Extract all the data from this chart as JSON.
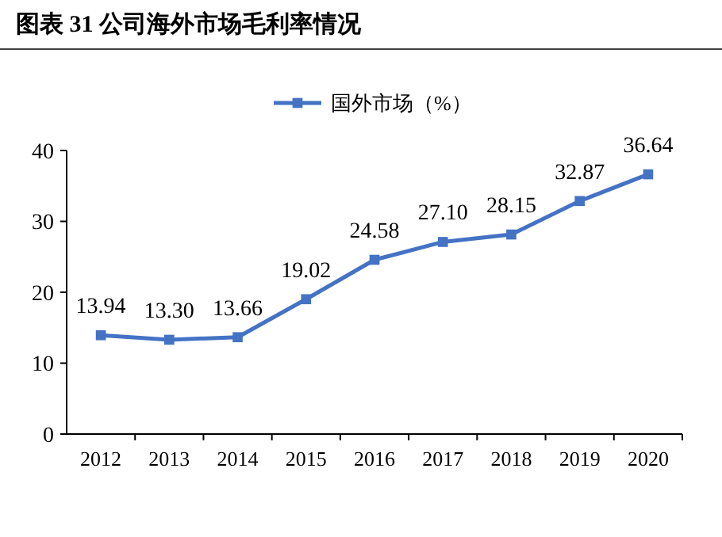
{
  "chart_data": {
    "type": "line",
    "title": "图表 31 公司海外市场毛利率情况",
    "categories": [
      "2012",
      "2013",
      "2014",
      "2015",
      "2016",
      "2017",
      "2018",
      "2019",
      "2020"
    ],
    "series": [
      {
        "name": "国外市场（%）",
        "color": "#4472c4",
        "values": [
          13.94,
          13.3,
          13.66,
          19.02,
          24.58,
          27.1,
          28.15,
          32.87,
          36.64
        ],
        "value_labels": [
          "13.94",
          "13.30",
          "13.66",
          "19.02",
          "24.58",
          "27.10",
          "28.15",
          "32.87",
          "36.64"
        ]
      }
    ],
    "ylim": [
      0,
      40
    ],
    "yticks": [
      0,
      10,
      20,
      30,
      40
    ],
    "marker": "square",
    "legend": "top",
    "grid": false
  }
}
